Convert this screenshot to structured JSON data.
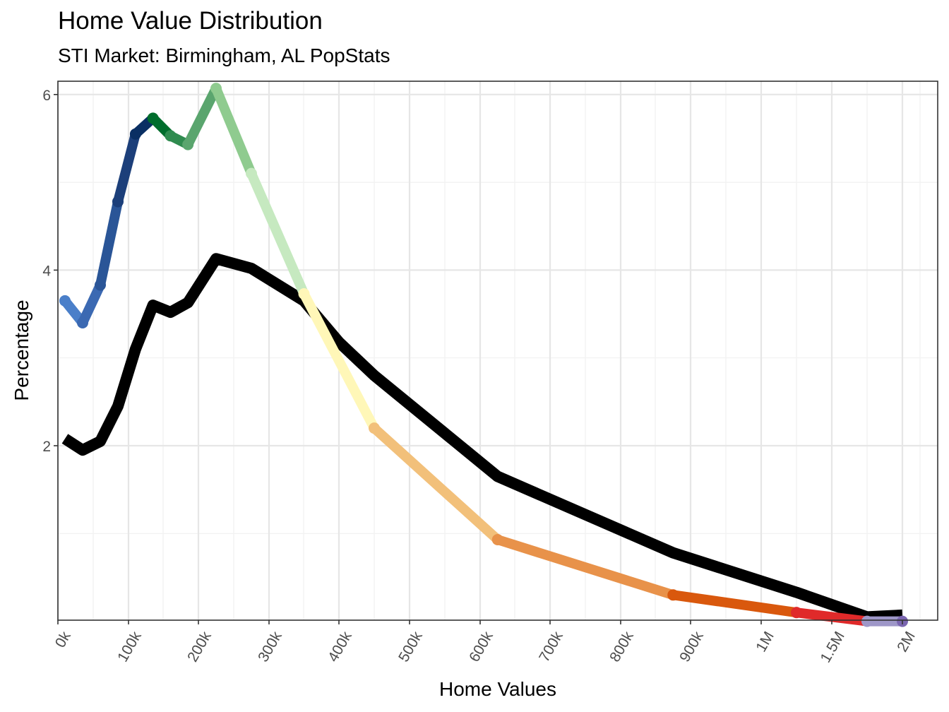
{
  "title": "Home Value Distribution",
  "subtitle": "STI Market: Birmingham, AL PopStats",
  "chart_data": {
    "type": "line",
    "xlabel": "Home Values",
    "ylabel": "Percentage",
    "x_tick_labels": [
      "0k",
      "100k",
      "200k",
      "300k",
      "400k",
      "500k",
      "600k",
      "700k",
      "800k",
      "900k",
      "1M",
      "1.5M",
      "2M"
    ],
    "y_ticks": [
      2,
      4,
      6
    ],
    "ylim": [
      0,
      6.05
    ],
    "grid": true,
    "series": [
      {
        "color": "#000000",
        "points": [
          {
            "x": "10k",
            "y": 2.08
          },
          {
            "x": "35k",
            "y": 1.95
          },
          {
            "x": "60k",
            "y": 2.05
          },
          {
            "x": "85k",
            "y": 2.45
          },
          {
            "x": "110k",
            "y": 3.1
          },
          {
            "x": "135k",
            "y": 3.6
          },
          {
            "x": "160k",
            "y": 3.52
          },
          {
            "x": "185k",
            "y": 3.63
          },
          {
            "x": "225k",
            "y": 4.13
          },
          {
            "x": "275k",
            "y": 4.02
          },
          {
            "x": "350k",
            "y": 3.65
          },
          {
            "x": "400k",
            "y": 3.18
          },
          {
            "x": "450k",
            "y": 2.8
          },
          {
            "x": "625k",
            "y": 1.65
          },
          {
            "x": "875k",
            "y": 0.78
          },
          {
            "x": "1.25M",
            "y": 0.33
          },
          {
            "x": "1.75M",
            "y": 0.05
          },
          {
            "x": "2M+",
            "y": 0.07
          }
        ]
      },
      {
        "color_segments": true,
        "points": [
          {
            "x": "10k",
            "y": 3.65,
            "color": "#4a7fc9"
          },
          {
            "x": "35k",
            "y": 3.4,
            "color": "#3b69b2"
          },
          {
            "x": "60k",
            "y": 3.83,
            "color": "#2a5597"
          },
          {
            "x": "85k",
            "y": 4.78,
            "color": "#1c3f7a"
          },
          {
            "x": "110k",
            "y": 5.55,
            "color": "#0a2f63"
          },
          {
            "x": "135k",
            "y": 5.73,
            "color": "#006d2c"
          },
          {
            "x": "160k",
            "y": 5.53,
            "color": "#2f8b4f"
          },
          {
            "x": "185k",
            "y": 5.43,
            "color": "#5aa56e"
          },
          {
            "x": "225k",
            "y": 6.07,
            "color": "#8fcb8f"
          },
          {
            "x": "275k",
            "y": 5.1,
            "color": "#c6e9c0"
          },
          {
            "x": "350k",
            "y": 3.73,
            "color": "#fff7b8"
          },
          {
            "x": "450k",
            "y": 2.2,
            "color": "#f2c07a"
          },
          {
            "x": "625k",
            "y": 0.93,
            "color": "#e8924a"
          },
          {
            "x": "875k",
            "y": 0.3,
            "color": "#d9580d"
          },
          {
            "x": "1.25M",
            "y": 0.1,
            "color": "#e02a2a"
          },
          {
            "x": "1.75M",
            "y": 0.0,
            "color": "#9e97c8"
          },
          {
            "x": "2M+",
            "y": 0.0,
            "color": "#7a66b0"
          }
        ]
      }
    ]
  }
}
